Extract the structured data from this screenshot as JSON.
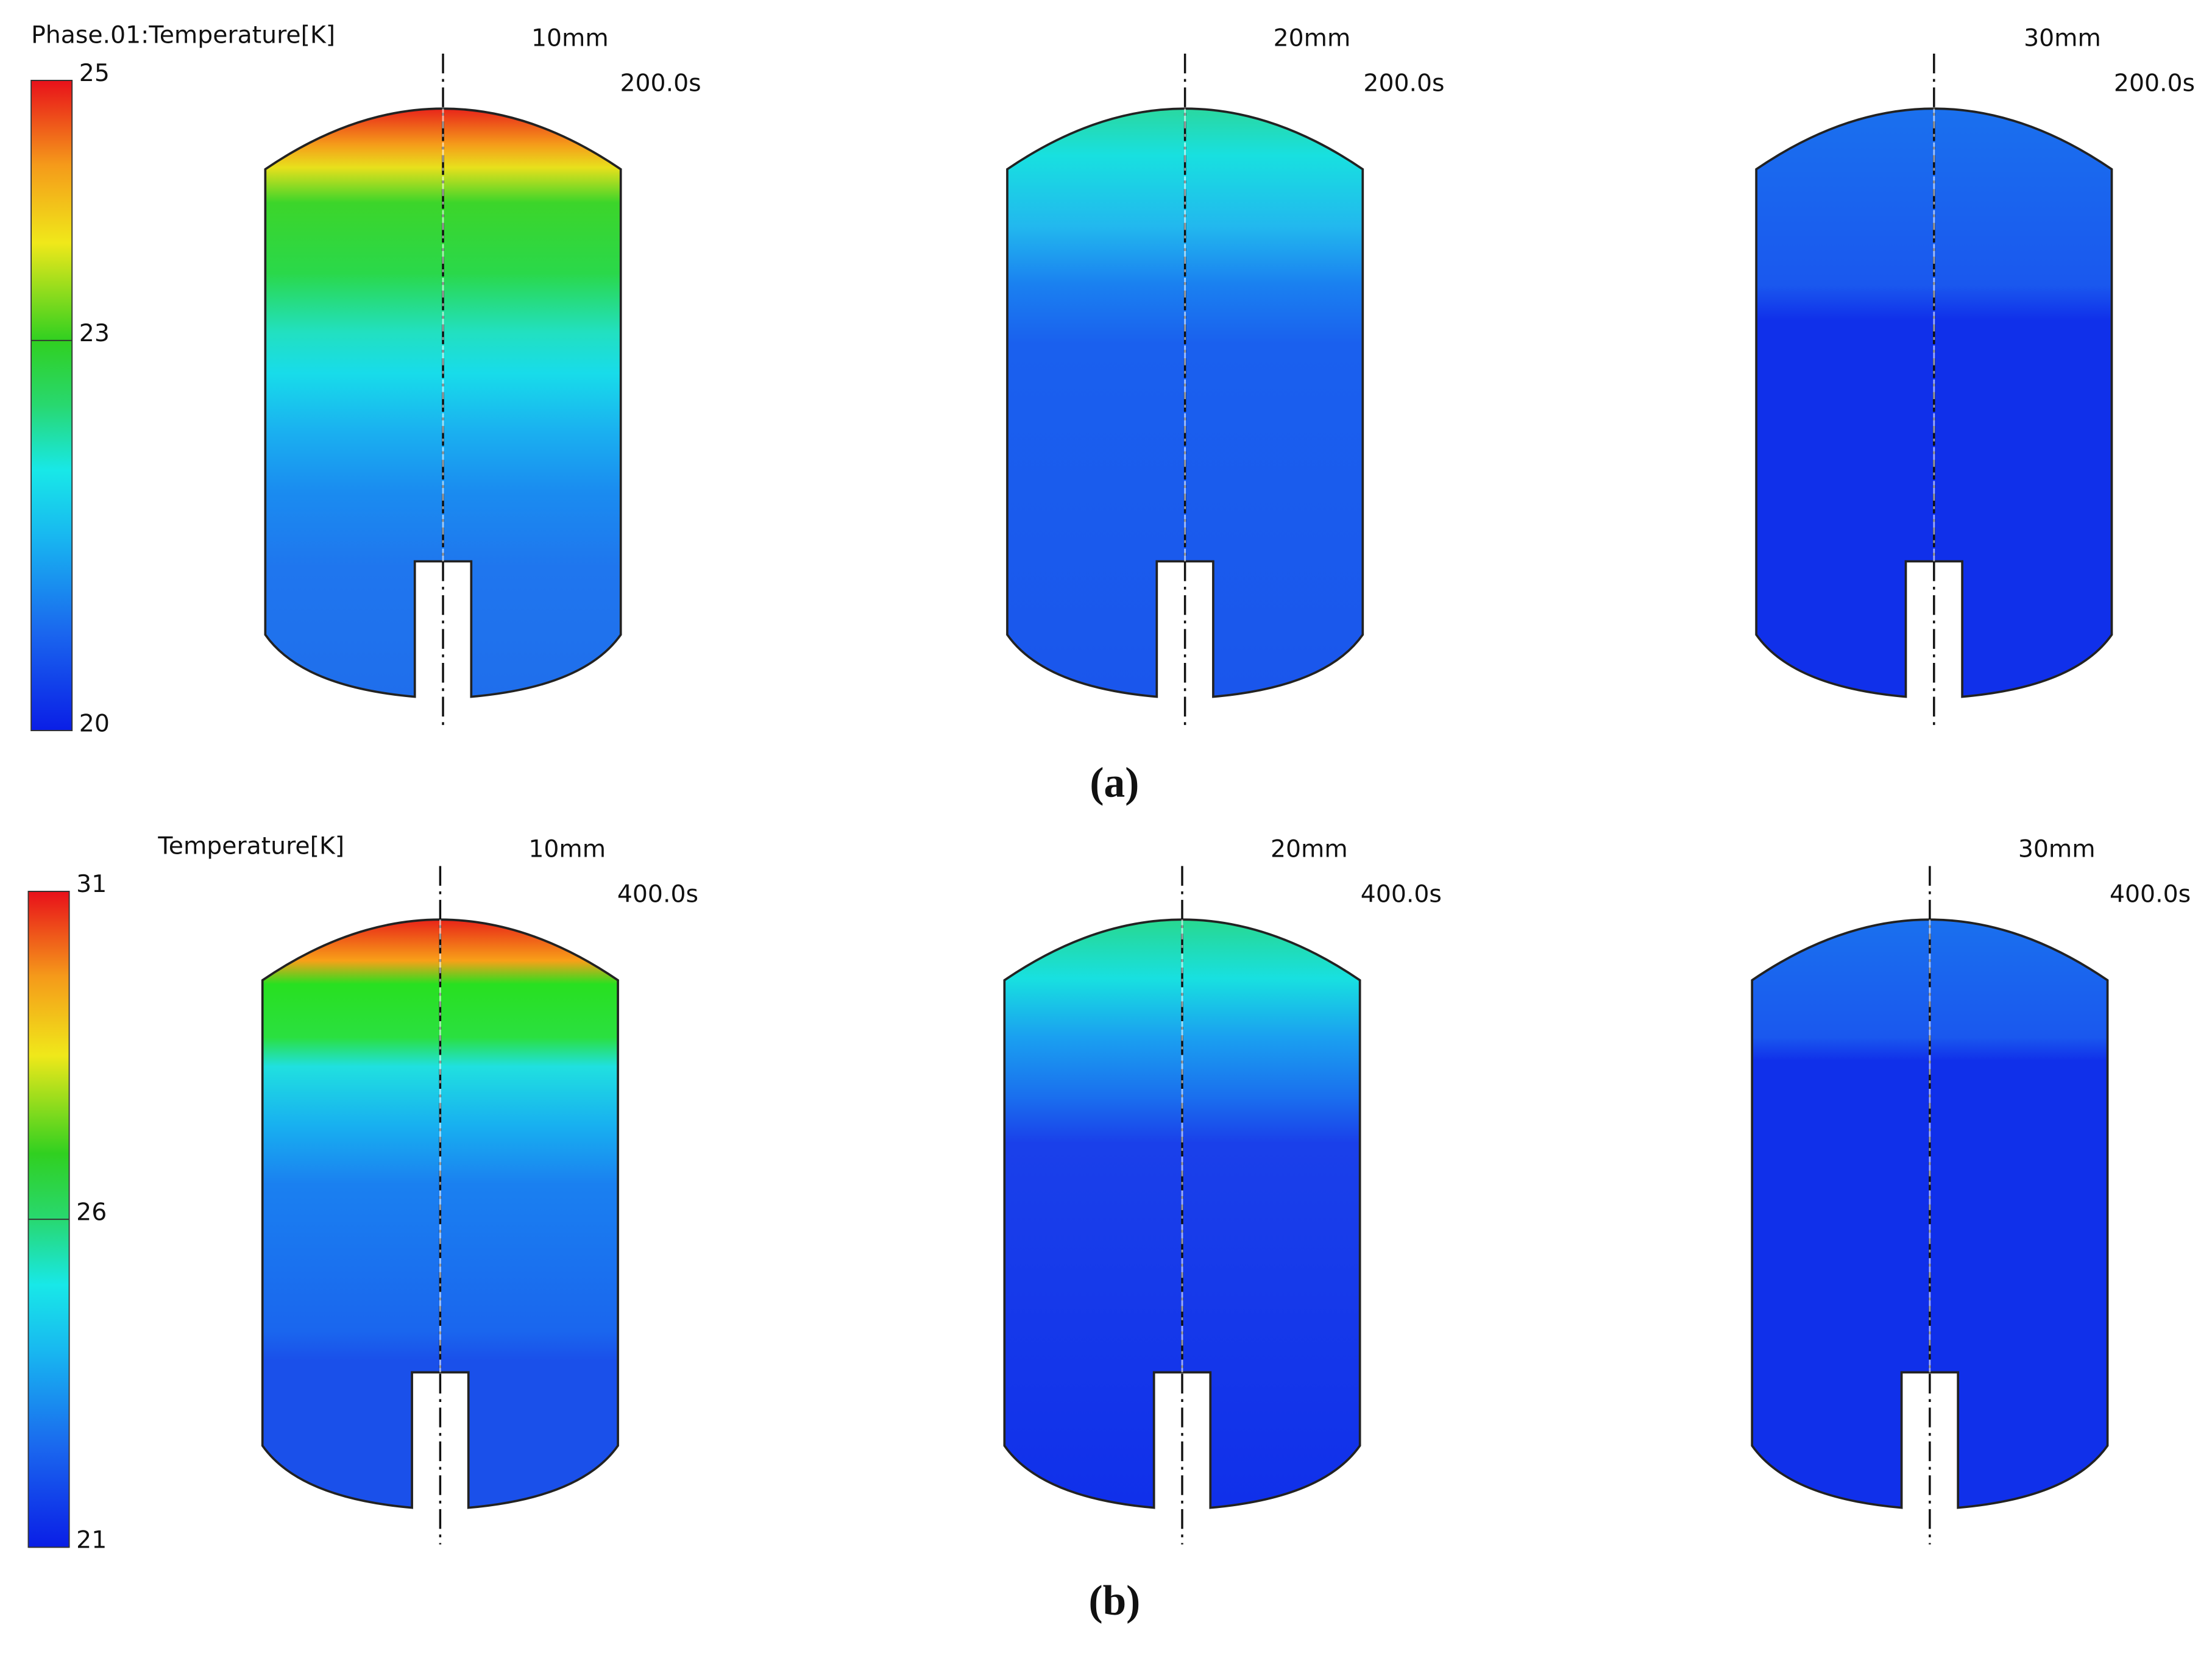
{
  "panels": [
    {
      "caption": "(a)",
      "colorbar": {
        "title": "Phase.01:Temperature[K]",
        "ticks": [
          25,
          23,
          20
        ]
      },
      "plots": [
        {
          "label": "10mm",
          "time": "200.0s"
        },
        {
          "label": "20mm",
          "time": "200.0s"
        },
        {
          "label": "30mm",
          "time": "200.0s"
        }
      ]
    },
    {
      "caption": "(b)",
      "colorbar": {
        "title": "Temperature[K]",
        "ticks": [
          31,
          26,
          21
        ]
      },
      "plots": [
        {
          "label": "10mm",
          "time": "400.0s"
        },
        {
          "label": "20mm",
          "time": "400.0s"
        },
        {
          "label": "30mm",
          "time": "400.0s"
        }
      ]
    }
  ]
}
